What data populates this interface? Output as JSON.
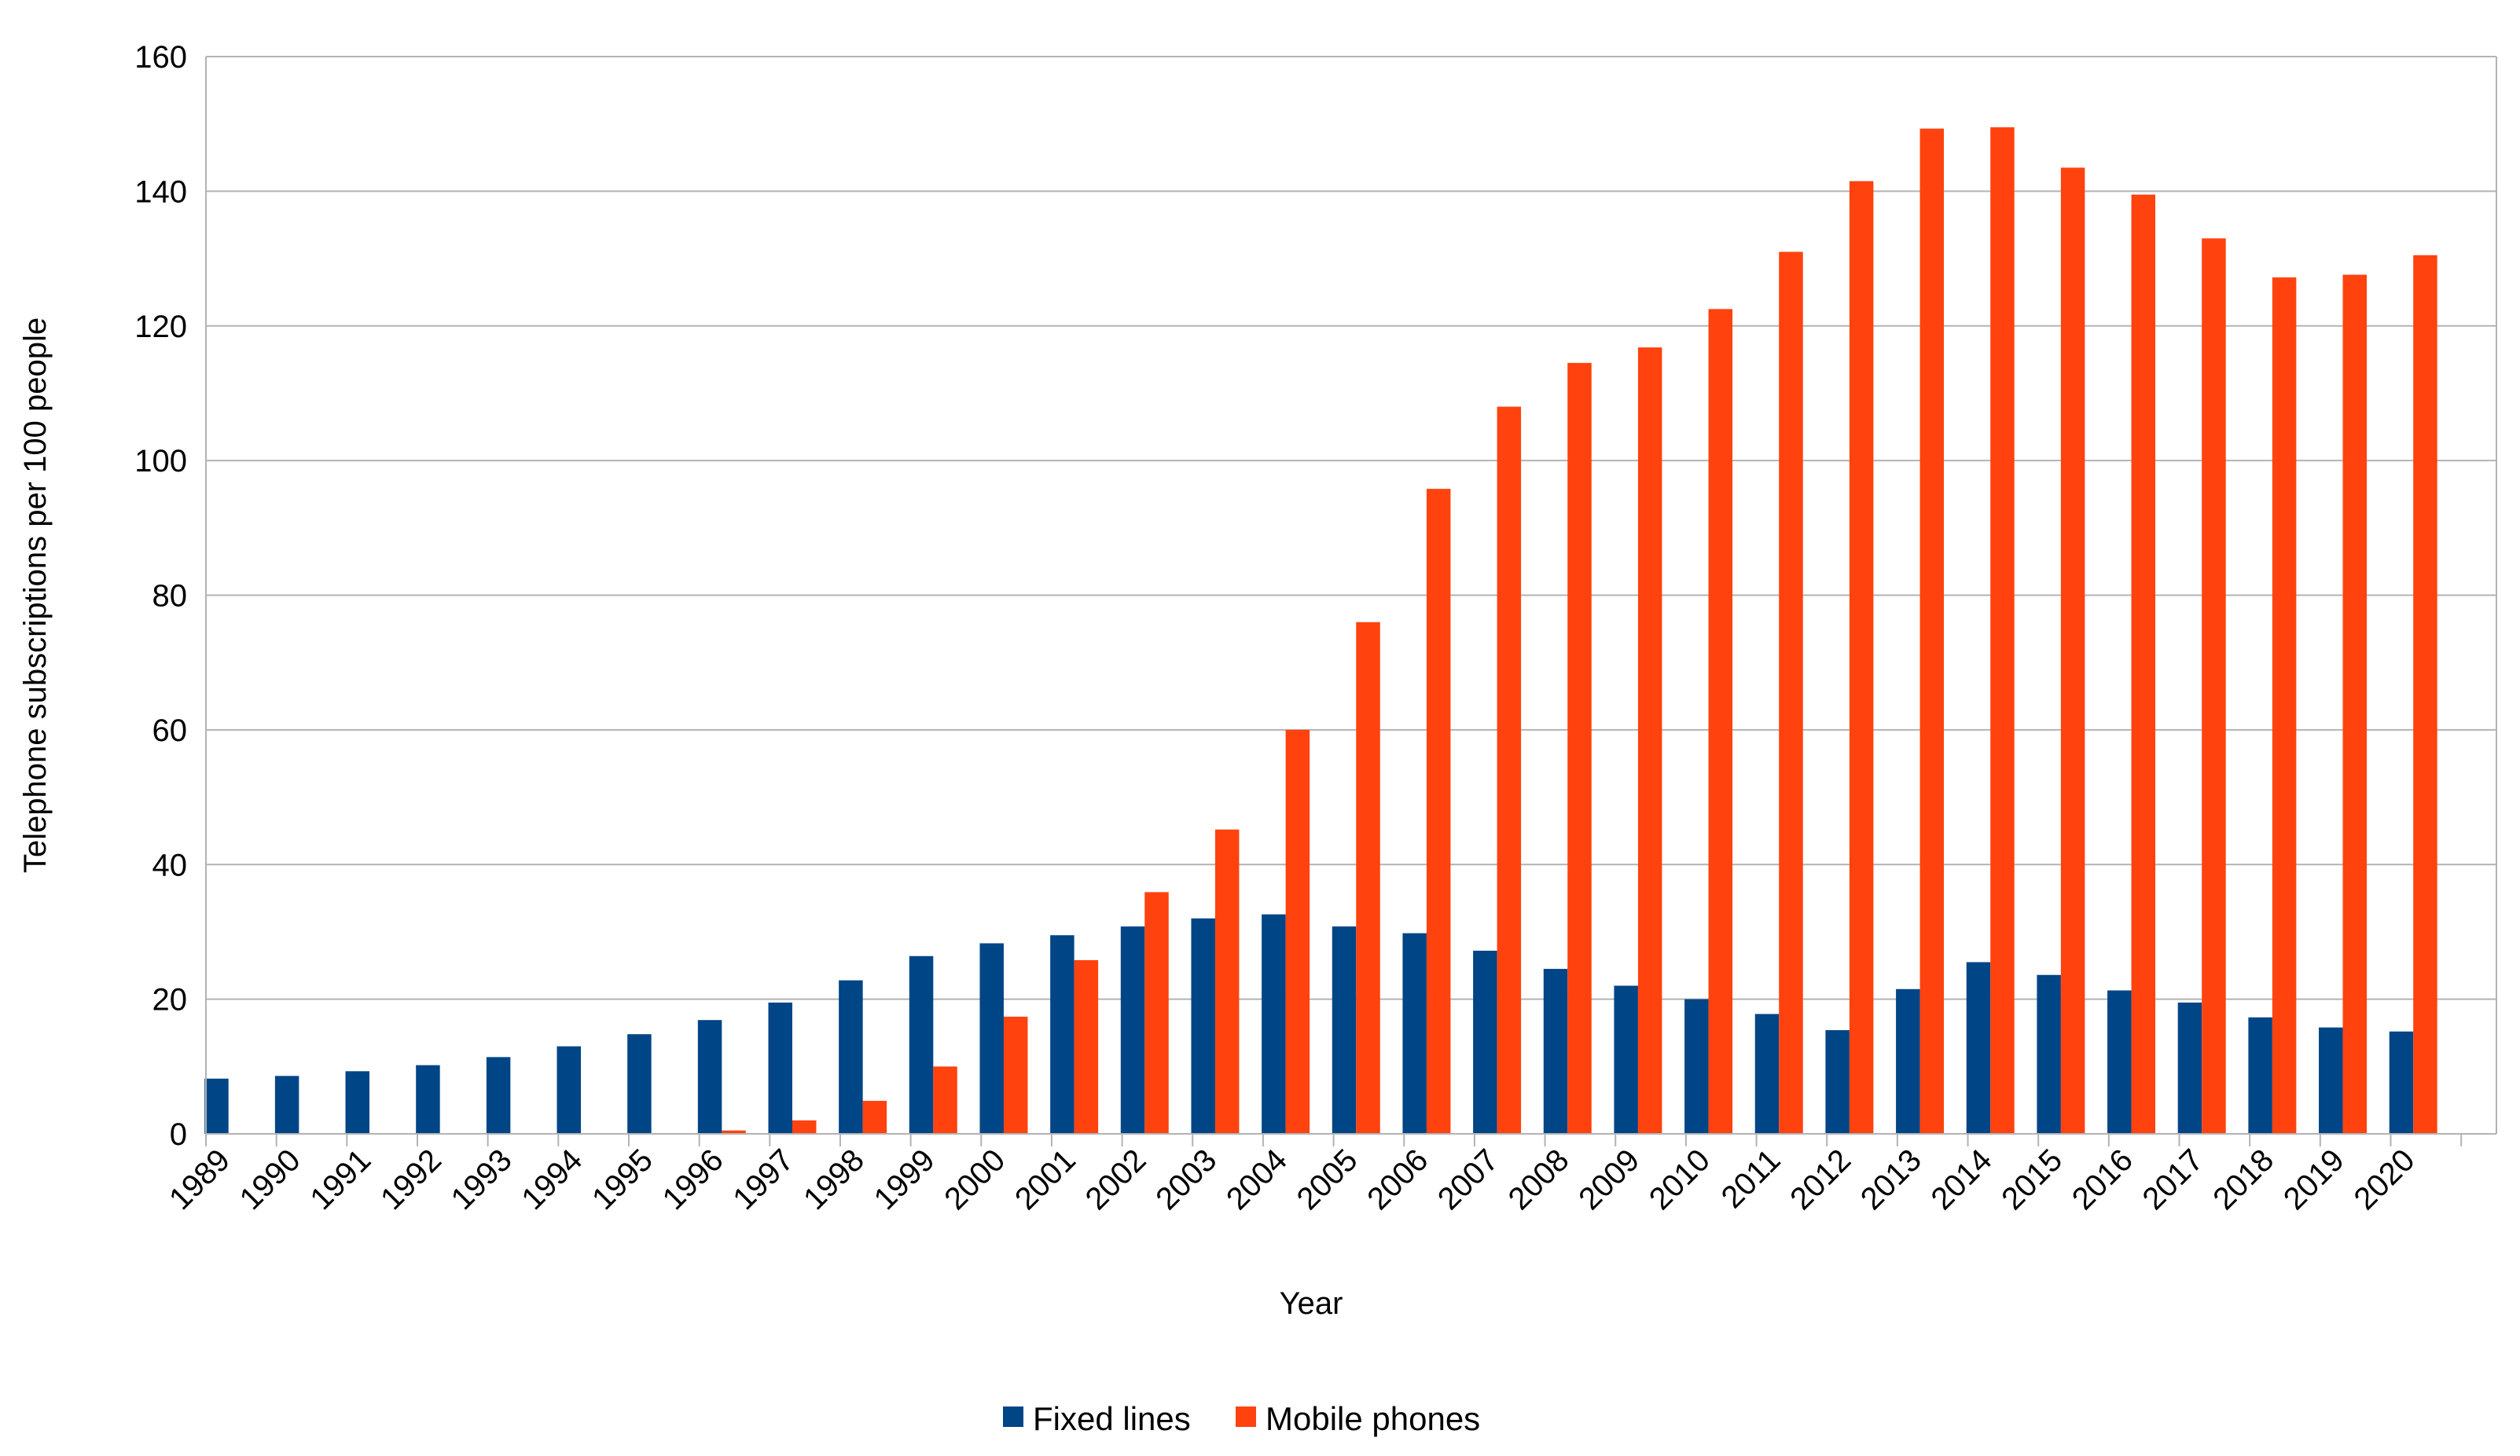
{
  "chart_data": {
    "type": "bar",
    "title": "",
    "xlabel": "Year",
    "ylabel": "Telephone subscriptions per 100 people",
    "ylim": [
      0,
      160
    ],
    "yticks": [
      0,
      20,
      40,
      60,
      80,
      100,
      120,
      140,
      160
    ],
    "grid": true,
    "legend_position": "bottom-center",
    "categories": [
      "1989",
      "1990",
      "1991",
      "1992",
      "1993",
      "1994",
      "1995",
      "1996",
      "1997",
      "1998",
      "1999",
      "2000",
      "2001",
      "2002",
      "2003",
      "2004",
      "2005",
      "2006",
      "2007",
      "2008",
      "2009",
      "2010",
      "2011",
      "2012",
      "2013",
      "2014",
      "2015",
      "2016",
      "2017",
      "2018",
      "2019",
      "2020"
    ],
    "series": [
      {
        "name": "Fixed lines",
        "color": "#004586",
        "values": [
          8.2,
          8.6,
          9.3,
          10.2,
          11.4,
          13.0,
          14.8,
          16.9,
          19.5,
          22.8,
          26.4,
          28.3,
          29.5,
          30.8,
          32.0,
          32.6,
          30.8,
          29.8,
          27.2,
          24.5,
          22.0,
          20.0,
          17.8,
          15.4,
          21.5,
          25.5,
          23.6,
          21.3,
          19.5,
          17.3,
          15.8,
          15.2
        ]
      },
      {
        "name": "Mobile phones",
        "color": "#ff420e",
        "values": [
          0.0,
          0.0,
          0.0,
          0.0,
          0.0,
          0.0,
          0.1,
          0.5,
          2.0,
          4.9,
          10.0,
          17.4,
          25.8,
          35.9,
          45.2,
          60.0,
          76.0,
          95.8,
          108.0,
          114.5,
          116.8,
          122.5,
          131.0,
          141.5,
          149.3,
          149.5,
          143.5,
          139.5,
          133.0,
          127.2,
          127.6,
          130.5
        ]
      }
    ]
  }
}
